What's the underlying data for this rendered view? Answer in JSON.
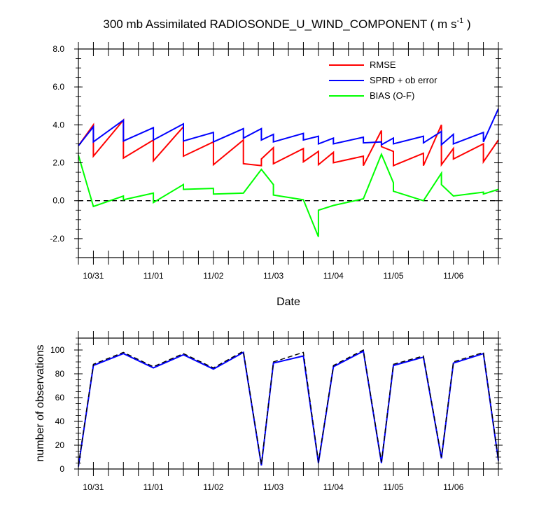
{
  "chart_data": [
    {
      "type": "line",
      "title": "300 mb Assimilated RADIOSONDE_U_WIND_COMPONENT ( m s",
      "title_superscript": "-1",
      "title_suffix": " )",
      "xlabel": "Date",
      "ylabel": "",
      "xlim": [
        0.0,
        7.0
      ],
      "ylim": [
        -3.0,
        8.0
      ],
      "x_tick_labels": [
        "10/31",
        "11/01",
        "11/02",
        "11/03",
        "11/04",
        "11/05",
        "11/06"
      ],
      "x_tick_positions": [
        0.25,
        1.25,
        2.25,
        3.25,
        4.25,
        5.25,
        6.25
      ],
      "y_tick_values": [
        -2.0,
        0.0,
        2.0,
        4.0,
        6.0,
        8.0
      ],
      "y_tick_labels": [
        "-2.0",
        "0.0",
        "2.0",
        "4.0",
        "6.0",
        "8.0"
      ],
      "zero_line": true,
      "grid": false,
      "legend_position": "top-right",
      "series": [
        {
          "name": "RMSE",
          "color": "#ff0000",
          "points": [
            [
              0.0,
              2.9
            ],
            [
              0.25,
              4.0
            ],
            [
              0.25,
              2.35
            ],
            [
              0.75,
              4.25
            ],
            [
              0.75,
              2.25
            ],
            [
              1.25,
              3.2
            ],
            [
              1.25,
              2.1
            ],
            [
              1.75,
              3.9
            ],
            [
              1.75,
              2.35
            ],
            [
              2.25,
              3.1
            ],
            [
              2.25,
              1.9
            ],
            [
              2.75,
              3.2
            ],
            [
              2.75,
              1.95
            ],
            [
              3.05,
              1.85
            ],
            [
              3.05,
              2.2
            ],
            [
              3.25,
              2.8
            ],
            [
              3.25,
              1.95
            ],
            [
              3.75,
              2.75
            ],
            [
              3.75,
              2.05
            ],
            [
              4.0,
              2.6
            ],
            [
              4.0,
              1.9
            ],
            [
              4.25,
              2.55
            ],
            [
              4.25,
              2.0
            ],
            [
              4.75,
              2.35
            ],
            [
              4.75,
              1.85
            ],
            [
              5.05,
              3.7
            ],
            [
              5.05,
              2.85
            ],
            [
              5.25,
              2.6
            ],
            [
              5.25,
              1.85
            ],
            [
              5.75,
              2.5
            ],
            [
              5.75,
              1.85
            ],
            [
              6.05,
              4.0
            ],
            [
              6.05,
              1.9
            ],
            [
              6.25,
              2.75
            ],
            [
              6.25,
              2.2
            ],
            [
              6.75,
              3.0
            ],
            [
              6.75,
              2.05
            ],
            [
              7.0,
              3.2
            ]
          ]
        },
        {
          "name": "SPRD + ob error",
          "color": "#0000ff",
          "points": [
            [
              0.0,
              2.9
            ],
            [
              0.25,
              3.9
            ],
            [
              0.25,
              3.1
            ],
            [
              0.75,
              4.25
            ],
            [
              0.75,
              3.15
            ],
            [
              1.25,
              3.85
            ],
            [
              1.25,
              3.2
            ],
            [
              1.75,
              4.05
            ],
            [
              1.75,
              3.15
            ],
            [
              2.25,
              3.6
            ],
            [
              2.25,
              3.1
            ],
            [
              2.75,
              3.8
            ],
            [
              2.75,
              3.3
            ],
            [
              3.05,
              3.8
            ],
            [
              3.05,
              3.2
            ],
            [
              3.25,
              3.5
            ],
            [
              3.25,
              3.1
            ],
            [
              3.75,
              3.55
            ],
            [
              3.75,
              3.2
            ],
            [
              4.0,
              3.4
            ],
            [
              4.0,
              3.0
            ],
            [
              4.25,
              3.3
            ],
            [
              4.25,
              3.0
            ],
            [
              4.75,
              3.35
            ],
            [
              4.75,
              3.05
            ],
            [
              5.05,
              3.1
            ],
            [
              5.05,
              2.95
            ],
            [
              5.25,
              3.3
            ],
            [
              5.25,
              3.0
            ],
            [
              5.75,
              3.4
            ],
            [
              5.75,
              3.05
            ],
            [
              6.05,
              3.65
            ],
            [
              6.05,
              2.95
            ],
            [
              6.25,
              3.5
            ],
            [
              6.25,
              3.0
            ],
            [
              6.75,
              3.6
            ],
            [
              6.75,
              3.1
            ],
            [
              7.0,
              4.85
            ]
          ]
        },
        {
          "name": "BIAS (O-F)",
          "color": "#00ff00",
          "points": [
            [
              0.0,
              2.4
            ],
            [
              0.25,
              -0.3
            ],
            [
              0.75,
              0.25
            ],
            [
              0.75,
              0.05
            ],
            [
              1.25,
              0.4
            ],
            [
              1.25,
              -0.1
            ],
            [
              1.75,
              0.85
            ],
            [
              1.75,
              0.6
            ],
            [
              2.25,
              0.65
            ],
            [
              2.25,
              0.35
            ],
            [
              2.75,
              0.4
            ],
            [
              3.05,
              1.65
            ],
            [
              3.25,
              0.85
            ],
            [
              3.25,
              0.3
            ],
            [
              3.75,
              0.05
            ],
            [
              4.0,
              -1.9
            ],
            [
              4.0,
              -0.5
            ],
            [
              4.25,
              -0.25
            ],
            [
              4.75,
              0.1
            ],
            [
              5.05,
              2.45
            ],
            [
              5.25,
              0.95
            ],
            [
              5.25,
              0.5
            ],
            [
              5.75,
              0.0
            ],
            [
              6.05,
              1.45
            ],
            [
              6.05,
              0.85
            ],
            [
              6.25,
              0.25
            ],
            [
              6.75,
              0.45
            ],
            [
              6.75,
              0.35
            ],
            [
              7.0,
              0.6
            ]
          ]
        }
      ]
    },
    {
      "type": "line",
      "title": "",
      "xlabel": "",
      "ylabel": "number of observations",
      "xlim": [
        0.0,
        7.0
      ],
      "ylim": [
        0,
        110
      ],
      "x_tick_labels": [
        "10/31",
        "11/01",
        "11/02",
        "11/03",
        "11/04",
        "11/05",
        "11/06"
      ],
      "x_tick_positions": [
        0.25,
        1.25,
        2.25,
        3.25,
        4.25,
        5.25,
        6.25
      ],
      "y_tick_values": [
        0,
        20,
        40,
        60,
        80,
        100
      ],
      "y_tick_labels": [
        "0",
        "20",
        "40",
        "60",
        "80",
        "100"
      ],
      "grid": false,
      "series": [
        {
          "color": "#0000ff",
          "dashed": false,
          "points": [
            [
              0.0,
              2
            ],
            [
              0.25,
              87
            ],
            [
              0.75,
              97
            ],
            [
              1.25,
              85
            ],
            [
              1.75,
              96
            ],
            [
              2.25,
              84
            ],
            [
              2.75,
              98
            ],
            [
              3.05,
              3
            ],
            [
              3.25,
              89
            ],
            [
              3.75,
              95
            ],
            [
              4.0,
              5
            ],
            [
              4.25,
              86
            ],
            [
              4.75,
              99
            ],
            [
              5.05,
              5
            ],
            [
              5.25,
              87
            ],
            [
              5.75,
              94
            ],
            [
              6.05,
              9
            ],
            [
              6.25,
              89
            ],
            [
              6.75,
              97
            ],
            [
              7.0,
              7
            ]
          ]
        },
        {
          "color": "#000000",
          "dashed": true,
          "points": [
            [
              0.0,
              3
            ],
            [
              0.25,
              88
            ],
            [
              0.75,
              98
            ],
            [
              1.25,
              86
            ],
            [
              1.75,
              97
            ],
            [
              2.25,
              85
            ],
            [
              2.75,
              99
            ],
            [
              3.05,
              4
            ],
            [
              3.25,
              90
            ],
            [
              3.75,
              98
            ],
            [
              4.0,
              6
            ],
            [
              4.25,
              87
            ],
            [
              4.75,
              100
            ],
            [
              5.05,
              6
            ],
            [
              5.25,
              88
            ],
            [
              5.75,
              95
            ],
            [
              6.05,
              10
            ],
            [
              6.25,
              90
            ],
            [
              6.75,
              98
            ],
            [
              7.0,
              8
            ]
          ]
        }
      ]
    }
  ]
}
